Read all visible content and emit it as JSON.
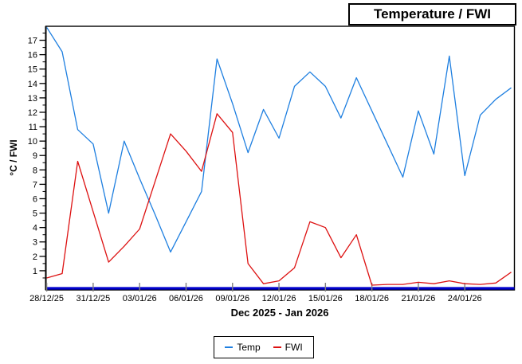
{
  "title": "Temperature / FWI",
  "chart_data": {
    "type": "line",
    "title": "Temperature / FWI",
    "xlabel": "Dec 2025 - Jan 2026",
    "ylabel": "°C / FWI",
    "ylim": [
      0,
      18
    ],
    "y_tick_min": 1,
    "y_tick_max": 17,
    "y_tick_step": 1,
    "y_minor_step": 0.5,
    "n_points": 31,
    "x_tick_indices": [
      0,
      3,
      6,
      9,
      12,
      15,
      18,
      21,
      24,
      27
    ],
    "x_tick_labels": [
      "28/12/25",
      "31/12/25",
      "03/01/26",
      "06/01/26",
      "09/01/26",
      "12/01/26",
      "15/01/26",
      "18/01/26",
      "21/01/26",
      "24/01/26"
    ],
    "grid": "off",
    "legend_position": "bottom-center",
    "frame_color": "#000000",
    "axis_line_color": "#0000CC",
    "x_tick_color": "#808080",
    "series": [
      {
        "name": "Temp",
        "color": "#1E7FE0",
        "values": [
          17.9,
          16.2,
          10.8,
          9.8,
          5.0,
          10.0,
          7.4,
          4.9,
          2.3,
          4.4,
          6.5,
          15.7,
          12.6,
          9.2,
          12.2,
          10.2,
          13.8,
          14.8,
          13.8,
          11.6,
          14.4,
          12.1,
          9.8,
          7.5,
          12.1,
          9.1,
          15.9,
          7.6,
          11.8,
          12.9,
          13.7
        ]
      },
      {
        "name": "FWI",
        "color": "#DD1111",
        "values": [
          0.5,
          0.8,
          8.6,
          5.1,
          1.6,
          2.7,
          3.9,
          7.2,
          10.5,
          9.3,
          7.9,
          11.9,
          10.6,
          1.5,
          0.1,
          0.3,
          1.2,
          4.4,
          4.0,
          1.9,
          3.5,
          0.0,
          0.05,
          0.05,
          0.2,
          0.1,
          0.3,
          0.1,
          0.05,
          0.15,
          0.9
        ]
      }
    ]
  }
}
